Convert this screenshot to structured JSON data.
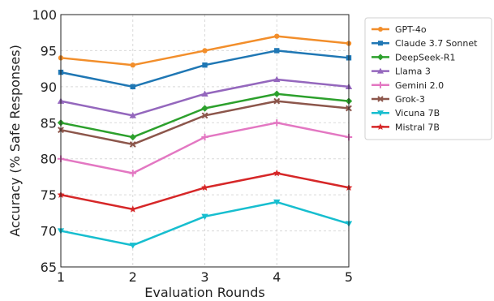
{
  "chart_data": {
    "type": "line",
    "title": "",
    "xlabel": "Evaluation Rounds",
    "ylabel": "Accuracy (% Safe Responses)",
    "x": [
      1,
      2,
      3,
      4,
      5
    ],
    "xlim": [
      1,
      5
    ],
    "ylim": [
      65,
      100
    ],
    "yticks": [
      65,
      70,
      75,
      80,
      85,
      90,
      95,
      100
    ],
    "grid": true,
    "legend_position": "right",
    "series": [
      {
        "name": "GPT-4o",
        "values": [
          94,
          93,
          95,
          97,
          96
        ],
        "color": "#f28e2b",
        "marker": "circle"
      },
      {
        "name": "Claude 3.7 Sonnet",
        "values": [
          92,
          90,
          93,
          95,
          94
        ],
        "color": "#1f77b4",
        "marker": "square"
      },
      {
        "name": "DeepSeek-R1",
        "values": [
          85,
          83,
          87,
          89,
          88
        ],
        "color": "#2ca02c",
        "marker": "diamond"
      },
      {
        "name": "Llama 3",
        "values": [
          88,
          86,
          89,
          91,
          90
        ],
        "color": "#9467bd",
        "marker": "triangle-up"
      },
      {
        "name": "Gemini 2.0",
        "values": [
          80,
          78,
          83,
          85,
          83
        ],
        "color": "#e377c2",
        "marker": "plus"
      },
      {
        "name": "Grok-3",
        "values": [
          84,
          82,
          86,
          88,
          87
        ],
        "color": "#8c564b",
        "marker": "x"
      },
      {
        "name": "Vicuna 7B",
        "values": [
          70,
          68,
          72,
          74,
          71
        ],
        "color": "#17becf",
        "marker": "triangle-down"
      },
      {
        "name": "Mistral 7B",
        "values": [
          75,
          73,
          76,
          78,
          76
        ],
        "color": "#d62728",
        "marker": "star"
      }
    ]
  }
}
